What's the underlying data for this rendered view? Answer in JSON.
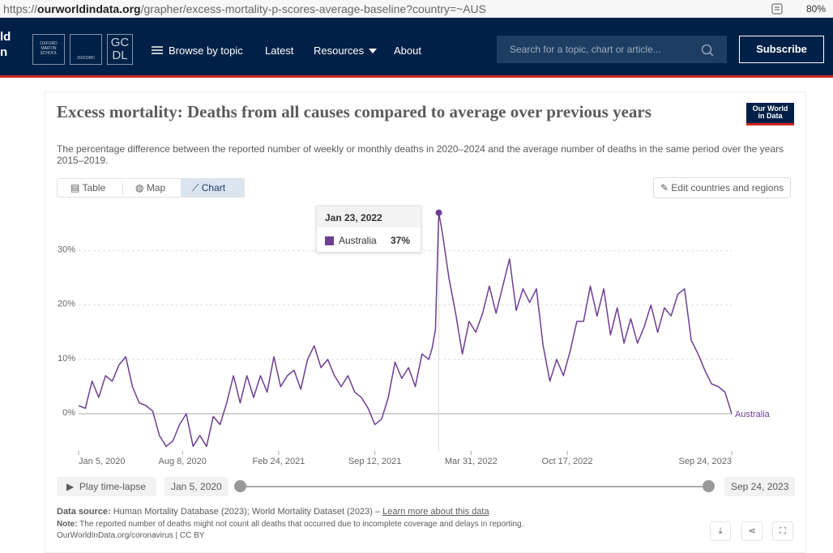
{
  "browser": {
    "url_prefix": "https://",
    "url_domain": "ourworldindata.org",
    "url_path": "/grapher/excess-mortality-p-scores-average-baseline?country=~AUS",
    "zoom": "80%"
  },
  "nav": {
    "logo_lines": [
      "ld",
      "n"
    ],
    "partners": [
      "OXFORD MARTIN SCHOOL",
      "OXFORD",
      "GC",
      "DL"
    ],
    "links": [
      "Browse by topic",
      "Latest",
      "Resources",
      "About"
    ],
    "search_placeholder": "Search for a topic, chart or article...",
    "subscribe": "Subscribe"
  },
  "card": {
    "logo": [
      "Our World",
      "in Data"
    ],
    "tabs": [
      "Table",
      "Map",
      "Chart"
    ],
    "edit_button": "Edit countries and regions",
    "tooltip": {
      "date": "Jan 23, 2022",
      "series": "Australia",
      "value": "37%"
    },
    "timeline": {
      "play": "Play time-lapse",
      "start": "Jan 5, 2020",
      "end": "Sep 24, 2023"
    },
    "footer": {
      "source_label": "Data source:",
      "source_text": "Human Mortality Database (2023); World Mortality Dataset (2023) –",
      "source_link": "Learn more about this data",
      "note_label": "Note:",
      "note_text": "The reported number of deaths might not count all deaths that occurred due to incomplete coverage and delays in reporting.",
      "credit": "OurWorldInData.org/coronavirus | CC BY"
    }
  },
  "chart_data": {
    "type": "line",
    "title": "Excess mortality: Deaths from all causes compared to average over previous years",
    "subtitle": "The percentage difference between the reported number of weekly or monthly deaths in 2020–2024 and the average number of deaths in the same period over the years 2015–2019.",
    "x": [
      "2020-01-05",
      "2020-01-19",
      "2020-02-02",
      "2020-02-16",
      "2020-03-01",
      "2020-03-15",
      "2020-03-29",
      "2020-04-12",
      "2020-04-26",
      "2020-05-10",
      "2020-05-24",
      "2020-06-07",
      "2020-06-21",
      "2020-07-05",
      "2020-07-19",
      "2020-08-02",
      "2020-08-16",
      "2020-08-30",
      "2020-09-13",
      "2020-09-27",
      "2020-10-11",
      "2020-10-25",
      "2020-11-08",
      "2020-11-22",
      "2020-12-06",
      "2020-12-20",
      "2021-01-03",
      "2021-01-17",
      "2021-01-31",
      "2021-02-14",
      "2021-02-28",
      "2021-03-14",
      "2021-03-28",
      "2021-04-11",
      "2021-04-25",
      "2021-05-09",
      "2021-05-23",
      "2021-06-06",
      "2021-06-20",
      "2021-07-04",
      "2021-07-18",
      "2021-08-01",
      "2021-08-15",
      "2021-08-29",
      "2021-09-12",
      "2021-09-26",
      "2021-10-10",
      "2021-10-24",
      "2021-11-07",
      "2021-11-21",
      "2021-12-05",
      "2021-12-19",
      "2022-01-02",
      "2022-01-09",
      "2022-01-16",
      "2022-01-23",
      "2022-01-30",
      "2022-02-13",
      "2022-02-27",
      "2022-03-13",
      "2022-03-27",
      "2022-04-10",
      "2022-04-24",
      "2022-05-08",
      "2022-05-22",
      "2022-06-05",
      "2022-06-19",
      "2022-07-03",
      "2022-07-17",
      "2022-07-31",
      "2022-08-14",
      "2022-08-28",
      "2022-09-11",
      "2022-09-25",
      "2022-10-09",
      "2022-10-23",
      "2022-11-06",
      "2022-11-20",
      "2022-12-04",
      "2022-12-18",
      "2023-01-01",
      "2023-01-15",
      "2023-01-29",
      "2023-02-12",
      "2023-02-26",
      "2023-03-12",
      "2023-03-26",
      "2023-04-09",
      "2023-04-23",
      "2023-05-07",
      "2023-05-21",
      "2023-06-04",
      "2023-06-18",
      "2023-07-02",
      "2023-07-16",
      "2023-07-30",
      "2023-08-13",
      "2023-08-27",
      "2023-09-10",
      "2023-09-24"
    ],
    "series": [
      {
        "name": "Australia",
        "color": "#6d3e91",
        "values": [
          1.5,
          1,
          6,
          3,
          7,
          6,
          9,
          10.5,
          5,
          2,
          1.5,
          0.5,
          -4,
          -6,
          -5,
          -2,
          0,
          -6,
          -4,
          -6,
          -0.5,
          -2,
          2,
          7,
          2,
          7,
          3,
          7,
          4,
          10.5,
          5,
          7,
          8,
          4.5,
          10,
          12.5,
          8.5,
          10,
          7,
          5,
          7,
          4,
          3,
          1,
          -2,
          -1,
          3,
          9.5,
          6.5,
          8.5,
          5,
          11,
          10,
          12,
          15.5,
          37,
          33.5,
          25,
          18.5,
          11,
          17,
          15,
          18.5,
          23.5,
          18.5,
          23.5,
          28.5,
          19,
          23,
          20.5,
          23,
          12.5,
          6,
          10,
          7,
          11.5,
          17,
          17,
          23.5,
          18,
          23,
          14.5,
          19.5,
          13,
          17.5,
          13,
          16,
          20,
          15,
          19.5,
          18,
          22,
          23,
          13.5,
          11,
          8,
          5.5,
          5,
          4,
          0
        ]
      }
    ],
    "xlim": [
      "2020-01-05",
      "2023-09-24"
    ],
    "xticks": [
      {
        "value": "2020-01-05",
        "label": "Jan 5, 2020"
      },
      {
        "value": "2020-08-08",
        "label": "Aug 8, 2020"
      },
      {
        "value": "2021-02-24",
        "label": "Feb 24, 2021"
      },
      {
        "value": "2021-09-12",
        "label": "Sep 12, 2021"
      },
      {
        "value": "2022-03-31",
        "label": "Mar 31, 2022"
      },
      {
        "value": "2022-10-17",
        "label": "Oct 17, 2022"
      },
      {
        "value": "2023-09-24",
        "label": "Sep 24, 2023"
      }
    ],
    "ylim": [
      -7,
      38
    ],
    "yticks": [
      {
        "value": 0,
        "label": "0%"
      },
      {
        "value": 10,
        "label": "10%"
      },
      {
        "value": 20,
        "label": "20%"
      },
      {
        "value": 30,
        "label": "30%"
      }
    ],
    "grid": true,
    "highlight_index": 55
  }
}
